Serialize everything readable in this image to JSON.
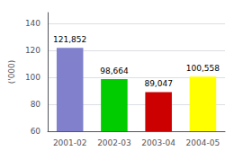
{
  "chart_data": {
    "type": "bar",
    "categories": [
      "2001-02",
      "2002-03",
      "2003-04",
      "2004-05"
    ],
    "values": [
      121852,
      98664,
      89047,
      100558
    ],
    "value_labels": [
      "121,852",
      "98,664",
      "89,047",
      "100,558"
    ],
    "data_labels": true,
    "colors": [
      "#8080cc",
      "#00cc00",
      "#cc0000",
      "#ffff00"
    ],
    "ylabel": "('000)",
    "ylim": [
      60000,
      148000
    ],
    "yticks": [
      {
        "value": 60000,
        "label": "60"
      },
      {
        "value": 80000,
        "label": "80"
      },
      {
        "value": 100000,
        "label": "100"
      },
      {
        "value": 120000,
        "label": "120"
      },
      {
        "value": 140000,
        "label": "140"
      }
    ],
    "grid": true
  }
}
